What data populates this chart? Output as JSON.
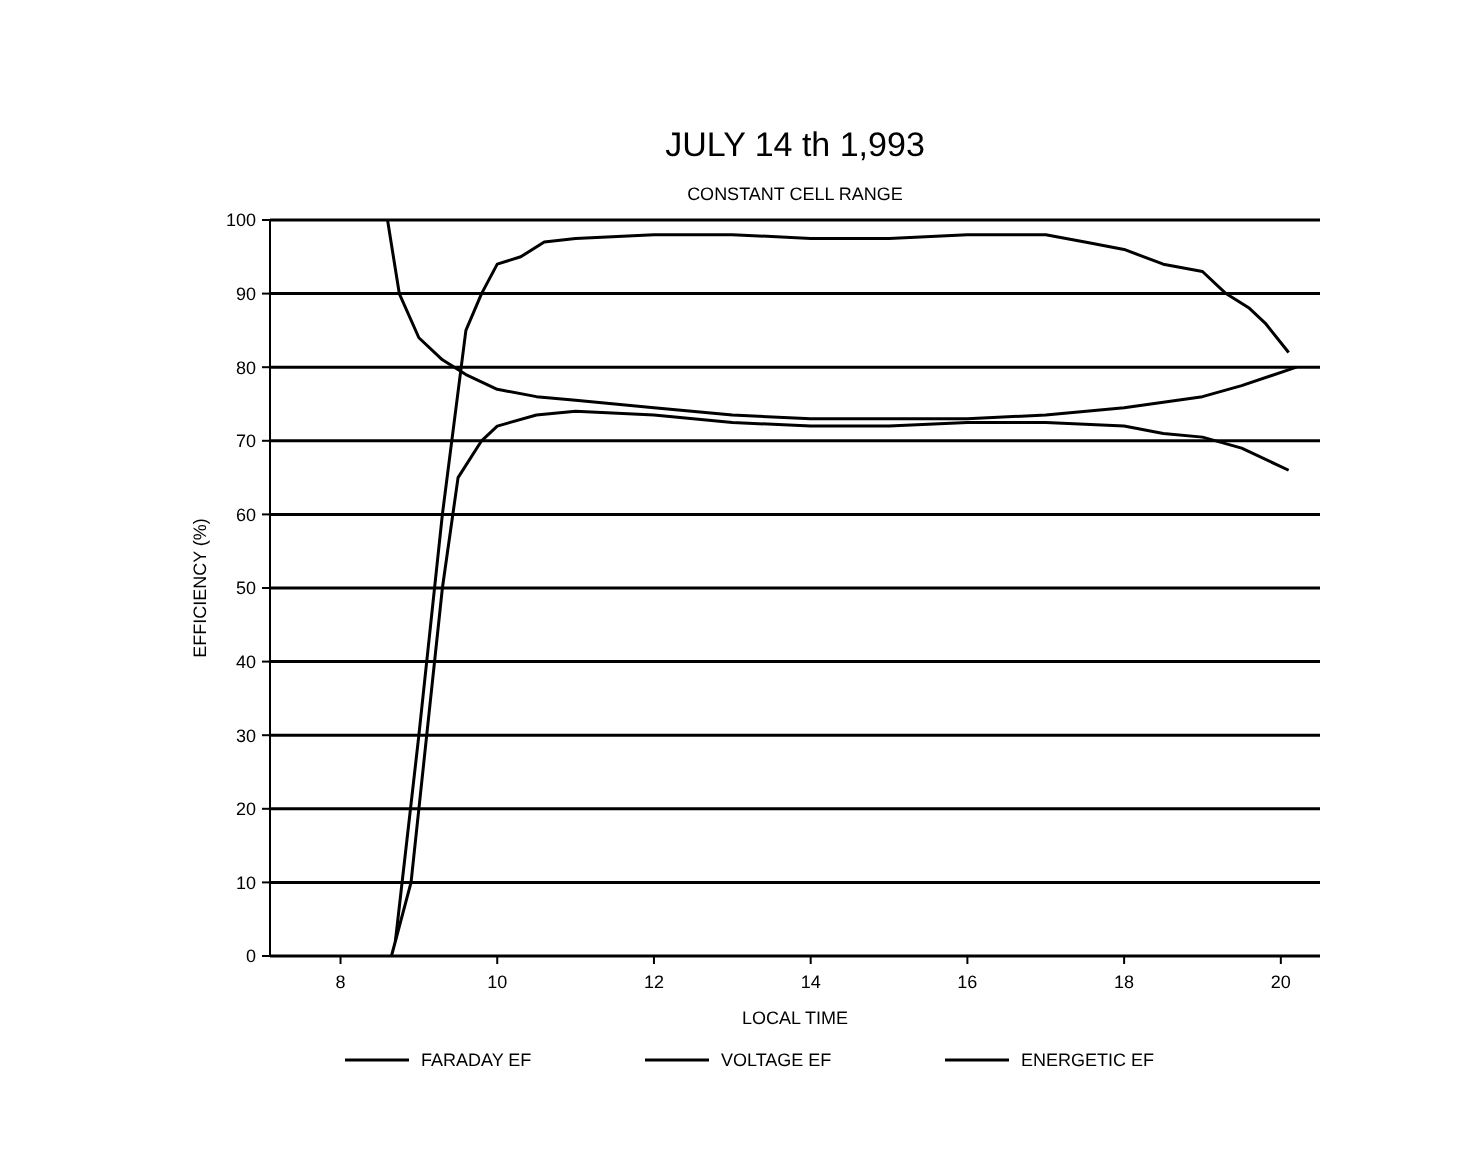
{
  "chart_data": {
    "type": "line",
    "title": "JULY 14 th 1,993",
    "subtitle": "CONSTANT CELL RANGE",
    "xlabel": "LOCAL TIME",
    "ylabel": "EFFICIENCY (%)",
    "xlim": [
      7.1,
      20.5
    ],
    "xticks": [
      8,
      10,
      12,
      14,
      16,
      18,
      20
    ],
    "ylim": [
      0,
      100
    ],
    "yticks": [
      0,
      10,
      20,
      30,
      40,
      50,
      60,
      70,
      80,
      90,
      100
    ],
    "grid": "y",
    "legend": "bottom",
    "line_style": "solid",
    "series": [
      {
        "name": "FARADAY EF",
        "color": "#000000",
        "x": [
          8.7,
          9.0,
          9.3,
          9.6,
          9.8,
          10.0,
          10.3,
          10.6,
          11,
          12,
          13,
          14,
          15,
          16,
          17,
          17.5,
          18,
          18.5,
          19,
          19.3,
          19.6,
          19.8,
          20.1
        ],
        "values": [
          2,
          30,
          60,
          85,
          90,
          94,
          95,
          97,
          97.5,
          98,
          98,
          97.5,
          97.5,
          98,
          98,
          97,
          96,
          94,
          93,
          90,
          88,
          86,
          82
        ]
      },
      {
        "name": "VOLTAGE EF",
        "color": "#000000",
        "x": [
          8.6,
          8.75,
          9.0,
          9.3,
          9.6,
          10,
          10.5,
          11,
          12,
          13,
          14,
          15,
          16,
          17,
          18,
          19,
          19.5,
          20.2
        ],
        "values": [
          100,
          90,
          84,
          81,
          79,
          77,
          76,
          75.5,
          74.5,
          73.5,
          73,
          73,
          73,
          73.5,
          74.5,
          76,
          77.5,
          80
        ]
      },
      {
        "name": "ENERGETIC EF",
        "color": "#000000",
        "x": [
          8.65,
          8.9,
          9.1,
          9.3,
          9.5,
          9.8,
          10,
          10.5,
          11,
          12,
          13,
          14,
          15,
          16,
          17,
          18,
          18.5,
          19,
          19.5,
          20.1
        ],
        "values": [
          0,
          10,
          30,
          50,
          65,
          70,
          72,
          73.5,
          74,
          73.5,
          72.5,
          72,
          72,
          72.5,
          72.5,
          72,
          71,
          70.5,
          69,
          66
        ]
      }
    ]
  }
}
